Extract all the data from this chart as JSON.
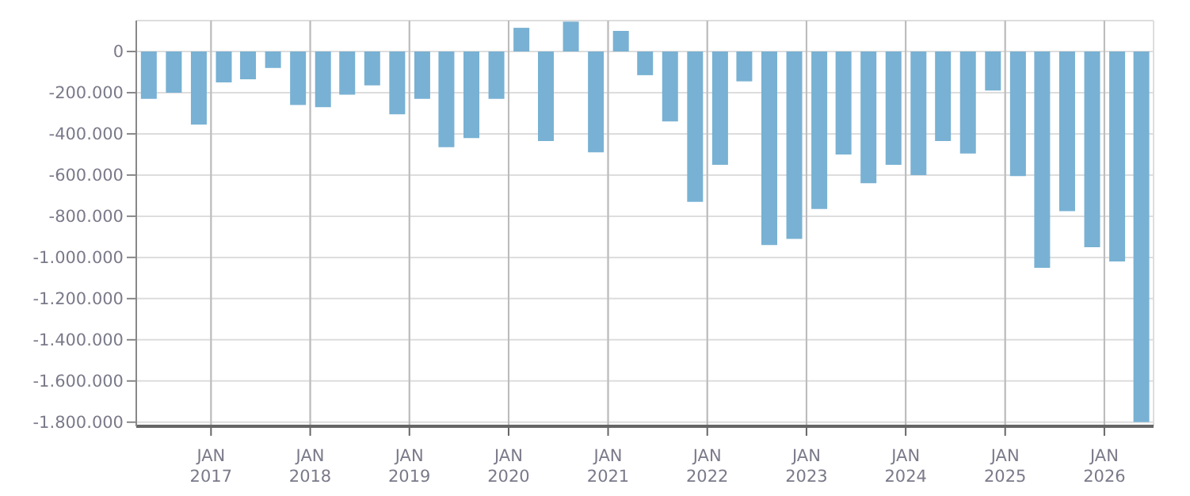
{
  "chart_data": {
    "type": "bar",
    "color": "#78b1d3",
    "x": [
      "2016-05-15",
      "2016-08-15",
      "2016-11-15",
      "2017-02-15",
      "2017-05-15",
      "2017-08-15",
      "2017-11-15",
      "2018-02-15",
      "2018-05-15",
      "2018-08-15",
      "2018-11-15",
      "2019-02-15",
      "2019-05-15",
      "2019-08-15",
      "2019-11-15",
      "2020-02-15",
      "2020-05-15",
      "2020-08-15",
      "2020-11-15",
      "2021-02-15",
      "2021-05-15",
      "2021-08-15",
      "2021-11-15",
      "2022-02-15",
      "2022-05-15",
      "2022-08-15",
      "2022-11-15",
      "2023-02-15",
      "2023-05-15",
      "2023-08-15",
      "2023-11-15",
      "2024-02-15",
      "2024-05-15",
      "2024-08-15",
      "2024-11-15",
      "2025-02-15",
      "2025-05-15",
      "2025-08-15",
      "2025-11-15",
      "2026-02-15",
      "2026-05-15"
    ],
    "values": [
      -230000,
      -200000,
      -355000,
      -150000,
      -135000,
      -80000,
      -260000,
      -270000,
      -210000,
      -165000,
      -305000,
      -230000,
      -465000,
      -420000,
      -230000,
      115000,
      -435000,
      145000,
      -490000,
      100000,
      -115000,
      -340000,
      -730000,
      -550000,
      -145000,
      -940000,
      -910000,
      -765000,
      -500000,
      -640000,
      -550000,
      -600000,
      -435000,
      -495000,
      -190000,
      -605000,
      -1050000,
      -775000,
      -950000,
      -1020000,
      -1800000
    ],
    "xlim": [
      "2016-04-01",
      "2026-07-01"
    ],
    "xticks": [
      {
        "value": "2017-01-01",
        "label": "JAN\n2017"
      },
      {
        "value": "2018-01-01",
        "label": "JAN\n2018"
      },
      {
        "value": "2019-01-01",
        "label": "JAN\n2019"
      },
      {
        "value": "2020-01-01",
        "label": "JAN\n2020"
      },
      {
        "value": "2021-01-01",
        "label": "JAN\n2021"
      },
      {
        "value": "2022-01-01",
        "label": "JAN\n2022"
      },
      {
        "value": "2023-01-01",
        "label": "JAN\n2023"
      },
      {
        "value": "2024-01-01",
        "label": "JAN\n2024"
      },
      {
        "value": "2025-01-01",
        "label": "JAN\n2025"
      },
      {
        "value": "2026-01-01",
        "label": "JAN\n2026"
      }
    ],
    "ylim": [
      -1820000,
      150000
    ],
    "yticks": [
      0,
      {
        "value": -200000,
        "label": "-200.000"
      },
      {
        "value": -400000,
        "label": "-400.000"
      },
      {
        "value": -600000,
        "label": "-600.000"
      },
      {
        "value": -800000,
        "label": "-800.000"
      },
      {
        "value": -1000000,
        "label": "-1.000.000"
      },
      {
        "value": -1200000,
        "label": "-1.200.000"
      },
      {
        "value": -1400000,
        "label": "-1.400.000"
      },
      {
        "value": -1600000,
        "label": "-1.600.000"
      },
      {
        "value": -1800000,
        "label": "-1.800.000"
      }
    ],
    "grid": true
  }
}
